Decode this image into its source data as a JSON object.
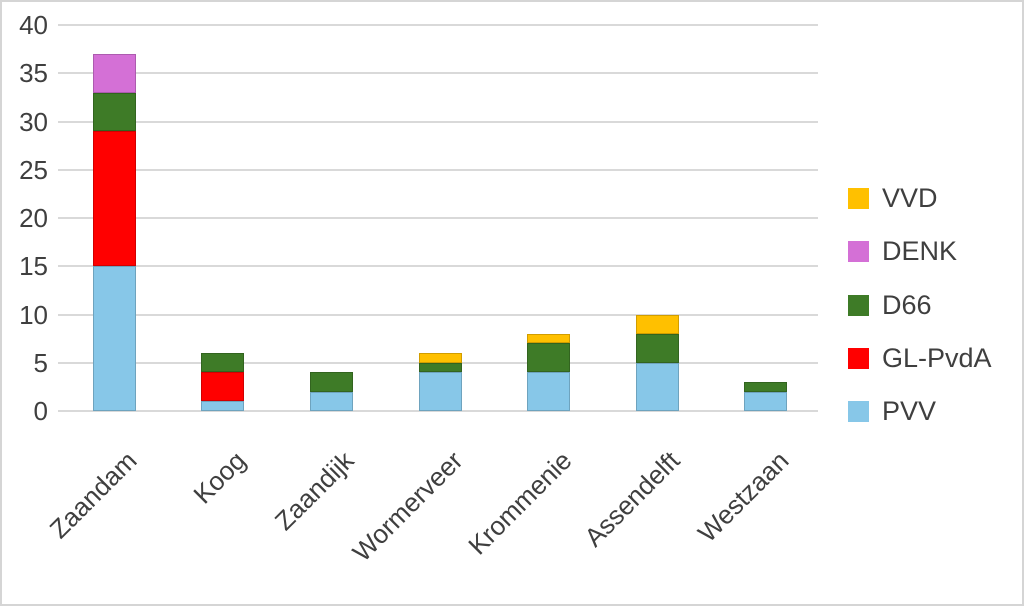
{
  "chart_data": {
    "type": "bar",
    "stacked": true,
    "title": "",
    "xlabel": "",
    "ylabel": "",
    "categories": [
      "Zaandam",
      "Koog",
      "Zaandijk",
      "Wormerveer",
      "Krommenie",
      "Assendelft",
      "Westzaan"
    ],
    "series": [
      {
        "name": "PVV",
        "color": "#87C7E8",
        "values": [
          15,
          1,
          2,
          4,
          4,
          5,
          2
        ]
      },
      {
        "name": "GL-PvdA",
        "color": "#FF0000",
        "values": [
          14,
          3,
          0,
          0,
          0,
          0,
          0
        ]
      },
      {
        "name": "D66",
        "color": "#3E7B27",
        "values": [
          4,
          2,
          2,
          1,
          3,
          3,
          1
        ]
      },
      {
        "name": "DENK",
        "color": "#D470D6",
        "values": [
          4,
          0,
          0,
          0,
          0,
          0,
          0
        ]
      },
      {
        "name": "VVD",
        "color": "#FFC000",
        "values": [
          0,
          0,
          0,
          1,
          1,
          2,
          0
        ]
      }
    ],
    "stack_totals": [
      37,
      6,
      4,
      6,
      8,
      10,
      3
    ],
    "ylim": [
      0,
      40
    ],
    "yticks": [
      0,
      5,
      10,
      15,
      20,
      25,
      30,
      35,
      40
    ],
    "grid": "horizontal",
    "legend_position": "right",
    "legend_order": [
      "VVD",
      "DENK",
      "D66",
      "GL-PvdA",
      "PVV"
    ],
    "colors": {
      "gridline": "#D9D9D9",
      "text": "#3F3F3F",
      "background": "#FFFFFF",
      "border": "#D5D5D5"
    }
  }
}
